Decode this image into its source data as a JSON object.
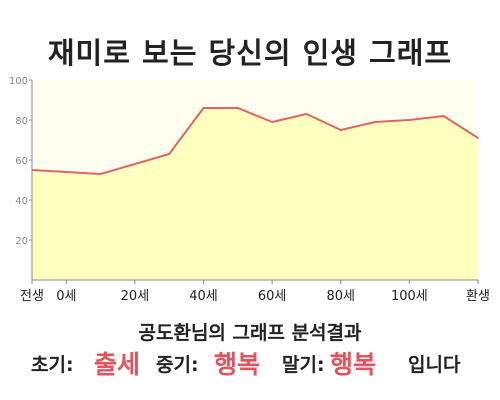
{
  "title": "재미로 보는 당신의 인생 그래프",
  "chart_data": {
    "type": "area",
    "x_ticks": [
      {
        "x": 0,
        "label": "전생"
      },
      {
        "x": 10,
        "label": "0세"
      },
      {
        "x": 30,
        "label": "20세"
      },
      {
        "x": 50,
        "label": "40세"
      },
      {
        "x": 70,
        "label": "60세"
      },
      {
        "x": 90,
        "label": "80세"
      },
      {
        "x": 110,
        "label": "100세"
      },
      {
        "x": 130,
        "label": "환생"
      }
    ],
    "x": [
      0,
      10,
      20,
      30,
      40,
      50,
      60,
      70,
      80,
      90,
      100,
      110,
      120,
      130
    ],
    "values": [
      55,
      54,
      53,
      58,
      63,
      86,
      86,
      79,
      83,
      75,
      79,
      80,
      82,
      71
    ],
    "ylim": [
      0,
      100
    ],
    "y_ticks": [
      20,
      40,
      60,
      80,
      100
    ],
    "grid": false,
    "colors": {
      "line": "#e06666",
      "fill": "#ffffc0",
      "plot_bg": "#fffff0",
      "axis": "#888888",
      "tick_label": "#888888"
    }
  },
  "analysis": {
    "heading": "공도환님의 그래프 분석결과",
    "early_label": "초기:",
    "early_value": "출세",
    "middle_label": "중기:",
    "middle_value": "행복",
    "late_label": "말기:",
    "late_value": "행복",
    "ending": "입니다",
    "highlight_color": "#e8505b"
  }
}
